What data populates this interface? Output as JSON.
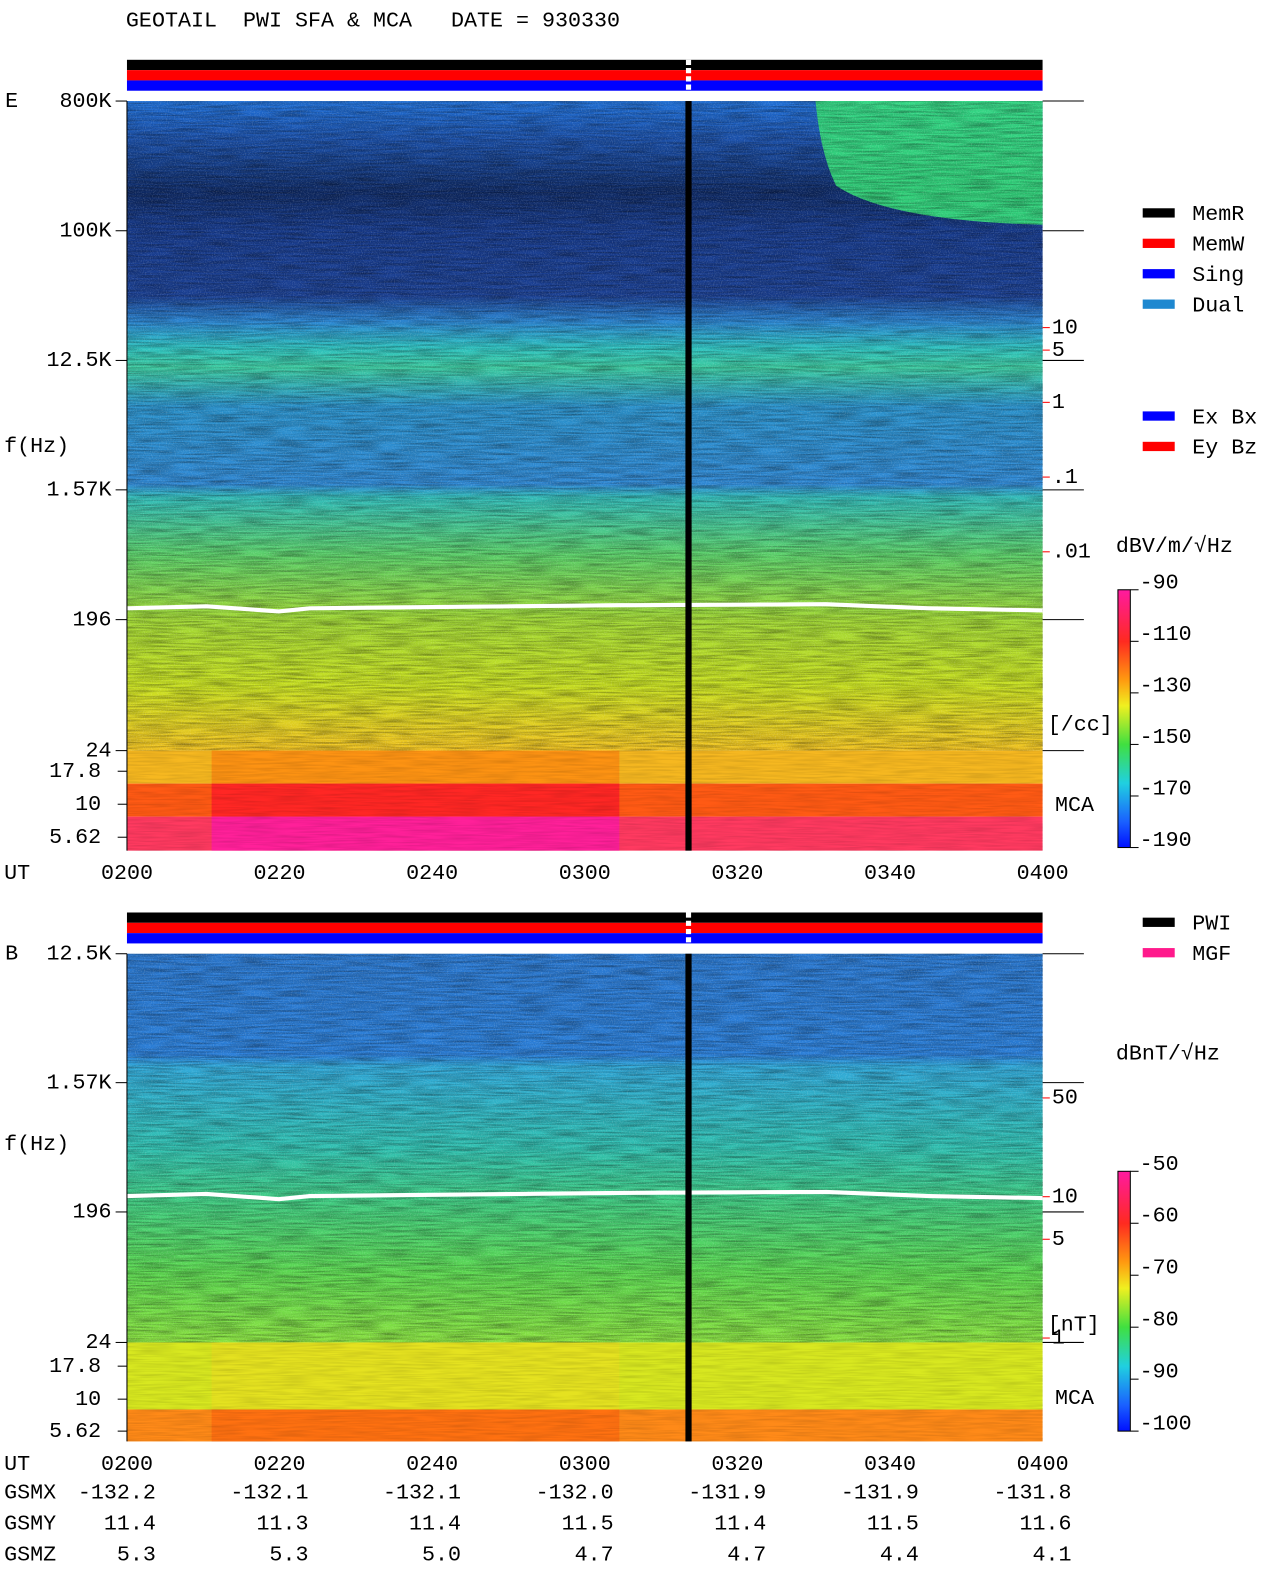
{
  "chart_data": [
    {
      "type": "spectrogram",
      "title": "GEOTAIL  PWI SFA & MCA   DATE = 930330",
      "panel_label": "E",
      "y_label": "f(Hz)",
      "x_label": "UT",
      "yscale": "log",
      "ylim": [
        24,
        800000
      ],
      "yticks": [
        {
          "value": 800000,
          "label": "800K"
        },
        {
          "value": 100000,
          "label": "100K"
        },
        {
          "value": 12500,
          "label": "12.5K"
        },
        {
          "value": 1570,
          "label": "1.57K"
        },
        196,
        24
      ],
      "mca_ticks": [
        17.8,
        10,
        5.62
      ],
      "mca_label": "MCA",
      "categories": [
        "0200",
        "0220",
        "0240",
        "0300",
        "0320",
        "0340",
        "0400"
      ],
      "colorbar": {
        "label": "dBV/m/√Hz",
        "lim": [
          -190,
          -90
        ],
        "ticks": [
          -90,
          -110,
          -130,
          -150,
          -170,
          -190
        ]
      },
      "density_scale": {
        "scale": "log",
        "lim": [
          0.005,
          12
        ],
        "ticks": [
          10,
          5,
          1,
          {
            "value": 0.1,
            "label": ".1"
          },
          {
            "value": 0.01,
            "label": ".01"
          }
        ],
        "unit": "[/cc]",
        "color": "#ff0000"
      },
      "legend": [
        {
          "name": "MemR",
          "color": "#000000"
        },
        {
          "name": "MemW",
          "color": "#ff0000"
        },
        {
          "name": "Sing",
          "color": "#0000ff"
        },
        {
          "name": "Dual",
          "color": "#1e88d0"
        }
      ],
      "legend2": [
        {
          "name": "Ex Bx",
          "color": "#0000ff"
        },
        {
          "name": "Ey Bz",
          "color": "#ff0000"
        }
      ]
    },
    {
      "type": "spectrogram",
      "panel_label": "B",
      "y_label": "f(Hz)",
      "x_label": "UT",
      "yscale": "log",
      "ylim": [
        24,
        12500
      ],
      "yticks": [
        {
          "value": 12500,
          "label": "12.5K"
        },
        {
          "value": 1570,
          "label": "1.57K"
        },
        196,
        24
      ],
      "mca_ticks": [
        17.8,
        10,
        5.62
      ],
      "mca_label": "MCA",
      "categories": [
        "0200",
        "0220",
        "0240",
        "0300",
        "0320",
        "0340",
        "0400"
      ],
      "colorbar": {
        "label": "dBnT/√Hz",
        "lim": [
          -100,
          -50
        ],
        "ticks": [
          -50,
          -60,
          -70,
          -80,
          -90,
          -100
        ]
      },
      "density_scale": {
        "scale": "log",
        "lim": [
          0.8,
          60
        ],
        "ticks": [
          50,
          10,
          5,
          1
        ],
        "unit": "[nT]",
        "color": "#ff0000"
      },
      "legend": [
        {
          "name": "PWI",
          "color": "#000000"
        },
        {
          "name": "MGF",
          "color": "#ff1a8c"
        }
      ]
    }
  ],
  "orbit": {
    "rows": [
      {
        "label": "GSMX",
        "values": [
          "-132.2",
          "-132.1",
          "-132.1",
          "-132.0",
          "-131.9",
          "-131.9",
          "-131.8"
        ]
      },
      {
        "label": "GSMY",
        "values": [
          "11.4",
          "11.3",
          "11.4",
          "11.5",
          "11.4",
          "11.5",
          "11.6"
        ]
      },
      {
        "label": "GSMZ",
        "values": [
          "5.3",
          "5.3",
          "5.0",
          "4.7",
          "4.7",
          "4.4",
          "4.1"
        ]
      }
    ]
  }
}
